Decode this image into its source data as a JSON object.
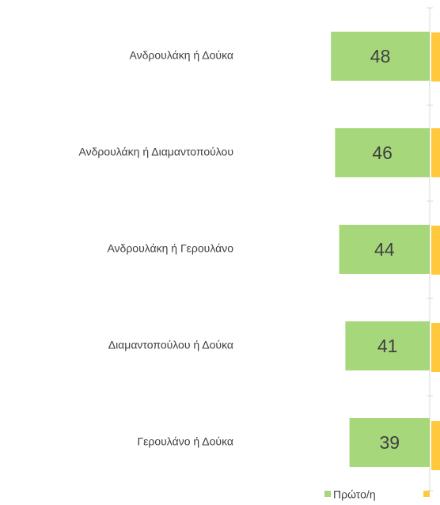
{
  "chart_data": {
    "type": "bar",
    "orientation": "horizontal",
    "categories": [
      "Ανδρουλάκη ή Δούκα",
      "Ανδρουλάκη ή Διαμαντοπούλου",
      "Ανδρουλάκη ή Γερουλάνο",
      "Διαμαντοπούλου ή Δούκα",
      "Γερουλάνο ή Δούκα"
    ],
    "series": [
      {
        "name": "Πρώτο/η",
        "color": "#a6d77b",
        "values": [
          48,
          46,
          44,
          41,
          39
        ]
      }
    ],
    "legend": "bottom"
  }
}
